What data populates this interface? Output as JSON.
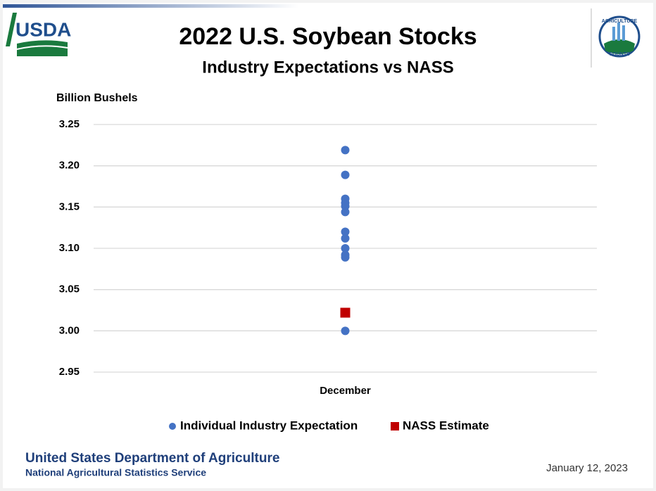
{
  "header": {
    "logo": "USDA",
    "badge_top": "AGRICULTURE",
    "badge_bottom": "COUNTS"
  },
  "chart_data": {
    "type": "scatter",
    "title": "2022 U.S. Soybean Stocks",
    "subtitle": "Industry Expectations vs NASS",
    "y_label": "Billion Bushels",
    "categories": [
      "December"
    ],
    "series": [
      {
        "name": "Individual Industry Expectation",
        "color": "#4472c4",
        "marker": "circle",
        "values": [
          3.219,
          3.189,
          3.16,
          3.155,
          3.151,
          3.144,
          3.12,
          3.112,
          3.1,
          3.092,
          3.089,
          3.0
        ]
      },
      {
        "name": "NASS Estimate",
        "color": "#c00000",
        "marker": "square",
        "values": [
          3.022
        ]
      }
    ],
    "ylim": [
      2.95,
      3.25
    ],
    "yticks": [
      2.95,
      {
        "value": 3.0,
        "label": "3.00"
      },
      3.05,
      {
        "value": 3.1,
        "label": "3.10"
      },
      3.15,
      {
        "value": 3.2,
        "label": "3.20"
      },
      3.25
    ],
    "grid": true,
    "legend": "bottom"
  },
  "footer": {
    "org": "United States Department of Agriculture",
    "agency": "National Agricultural Statistics Service",
    "date": "January 12, 2023"
  }
}
